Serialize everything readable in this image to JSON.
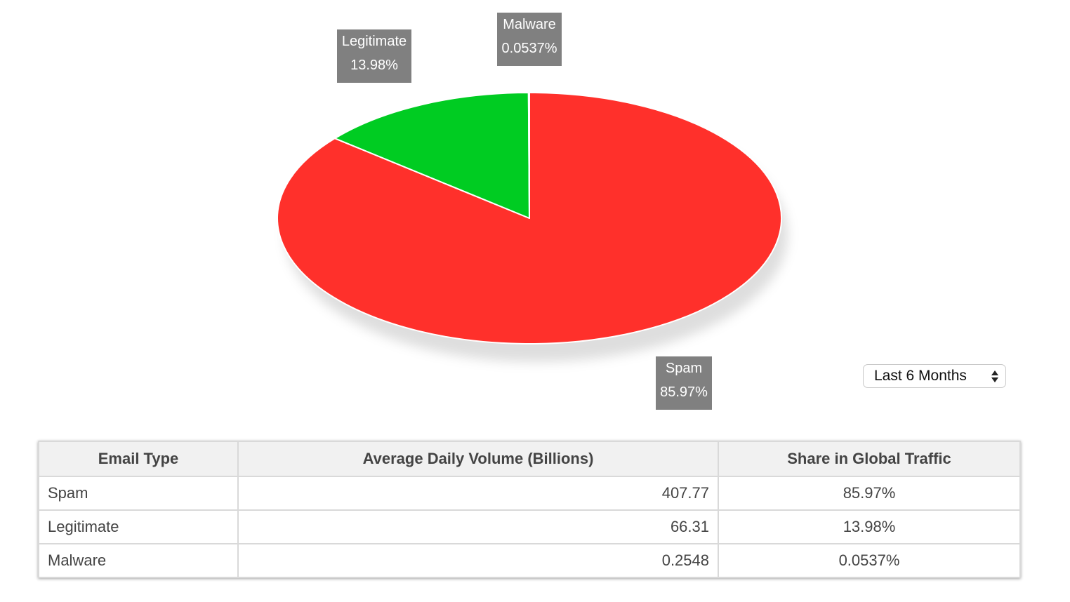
{
  "chart_data": {
    "type": "pie",
    "slices": [
      {
        "label": "Spam",
        "percent_label": "85.97%",
        "value": 85.97,
        "color": "#ff302b"
      },
      {
        "label": "Legitimate",
        "percent_label": "13.98%",
        "value": 13.98,
        "color": "#00cc22"
      },
      {
        "label": "Malware",
        "percent_label": "0.0537%",
        "value": 0.0537,
        "color": "#3366ff"
      }
    ]
  },
  "period_select": {
    "selected": "Last 6 Months"
  },
  "table": {
    "headers": [
      "Email Type",
      "Average Daily Volume (Billions)",
      "Share in Global Traffic"
    ],
    "rows": [
      {
        "type": "Spam",
        "volume": "407.77",
        "share": "85.97%"
      },
      {
        "type": "Legitimate",
        "volume": "66.31",
        "share": "13.98%"
      },
      {
        "type": "Malware",
        "volume": "0.2548",
        "share": "0.0537%"
      }
    ]
  }
}
